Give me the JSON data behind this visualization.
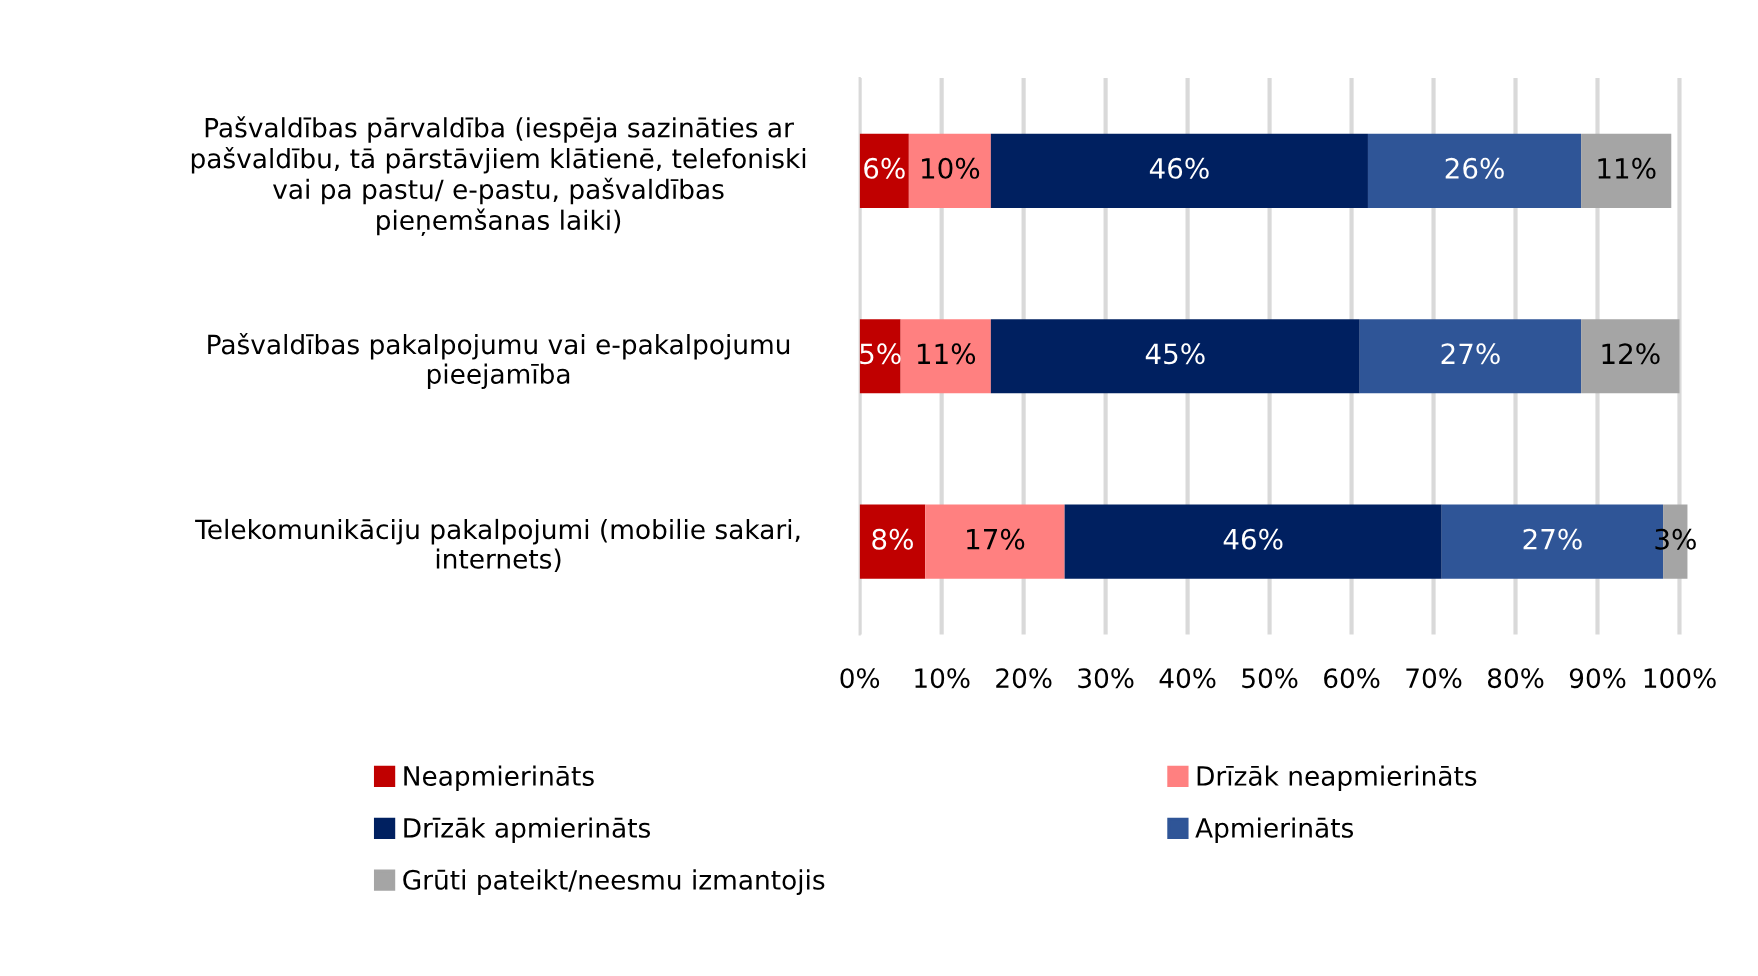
{
  "chart_data": {
    "type": "bar",
    "orientation": "horizontal",
    "stacked": true,
    "categories": [
      "Pašvaldības pārvaldība (iespēja sazināties ar\npašvaldību, tā pārstāvjiem klātienē, telefoniski\nvai pa pastu/ e-pastu, pašvaldības\npieņemšanas laiki)",
      "Pašvaldības pakalpojumu vai e-pakalpojumu\npieejamība",
      "Telekomunikāciju pakalpojumi (mobilie sakari,\ninternets)"
    ],
    "series": [
      {
        "name": "Neapmierināts",
        "color": "#c00000",
        "values": [
          6,
          5,
          8
        ]
      },
      {
        "name": "Drīzāk neapmierināts",
        "color": "#ff8080",
        "values": [
          10,
          11,
          17
        ]
      },
      {
        "name": "Drīzāk apmierināts",
        "color": "#002060",
        "values": [
          46,
          45,
          46
        ]
      },
      {
        "name": "Apmierināts",
        "color": "#2f5597",
        "values": [
          26,
          27,
          27
        ]
      },
      {
        "name": "Grūti pateikt/neesmu izmantojis",
        "color": "#a5a5a5",
        "values": [
          11,
          12,
          3
        ]
      }
    ],
    "value_labels": [
      [
        "6%",
        "5%",
        "8%"
      ],
      [
        "10%",
        "11%",
        "17%"
      ],
      [
        "46%",
        "45%",
        "46%"
      ],
      [
        "26%",
        "27%",
        "27%"
      ],
      [
        "11%",
        "12%",
        "3%"
      ]
    ],
    "xlim": [
      0,
      101
    ],
    "xticks": [
      {
        "value": 0,
        "label": "0%"
      },
      {
        "value": 10,
        "label": "10%"
      },
      {
        "value": 20,
        "label": "20%"
      },
      {
        "value": 30,
        "label": "30%"
      },
      {
        "value": 40,
        "label": "40%"
      },
      {
        "value": 50,
        "label": "50%"
      },
      {
        "value": 60,
        "label": "60%"
      },
      {
        "value": 70,
        "label": "70%"
      },
      {
        "value": 80,
        "label": "80%"
      },
      {
        "value": 90,
        "label": "90%"
      },
      {
        "value": 100,
        "label": "100%"
      }
    ],
    "grid": "x",
    "legend": "bottom"
  }
}
